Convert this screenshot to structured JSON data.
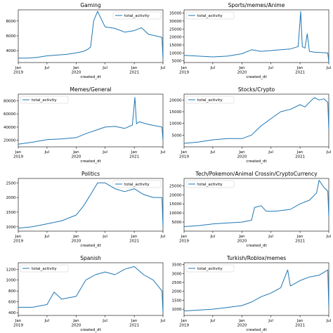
{
  "chart_data": [
    {
      "type": "line",
      "title": "Gaming",
      "xlabel": "created_dt",
      "ylabel": "",
      "legend": "top-right",
      "ylim": [
        2400,
        9500
      ],
      "yticks": [
        4000,
        6000,
        8000
      ],
      "series": [
        {
          "name": "total_activity",
          "color": "#1f77b4",
          "x": [
            "2019-01-01",
            "2019-03-01",
            "2019-05-01",
            "2019-07-01",
            "2019-09-01",
            "2019-11-01",
            "2020-01-01",
            "2020-02-15",
            "2020-03-15",
            "2020-04-01",
            "2020-04-20",
            "2020-05-15",
            "2020-07-01",
            "2020-09-01",
            "2020-11-01",
            "2021-01-01",
            "2021-02-15",
            "2021-04-01",
            "2021-05-15",
            "2021-06-25",
            "2021-07-01"
          ],
          "values": [
            3000,
            3000,
            3100,
            3300,
            3400,
            3500,
            3700,
            3900,
            4200,
            4500,
            8000,
            9300,
            7200,
            7000,
            6500,
            6700,
            7100,
            6200,
            6000,
            5800,
            2900
          ]
        }
      ]
    },
    {
      "type": "line",
      "title": "Sports/memes/Anime",
      "xlabel": "created_dt",
      "ylabel": "",
      "legend": "top-left",
      "ylim": [
        4000,
        37000
      ],
      "yticks": [
        5000,
        10000,
        15000,
        20000,
        25000,
        30000,
        35000
      ],
      "series": [
        {
          "name": "total_activity",
          "color": "#1f77b4",
          "x": [
            "2019-01-01",
            "2019-04-01",
            "2019-07-01",
            "2019-10-01",
            "2020-01-01",
            "2020-03-01",
            "2020-05-01",
            "2020-07-01",
            "2020-09-01",
            "2020-11-01",
            "2020-12-20",
            "2021-01-05",
            "2021-01-15",
            "2021-02-01",
            "2021-02-15",
            "2021-03-01",
            "2021-04-01",
            "2021-06-25",
            "2021-07-01"
          ],
          "values": [
            8500,
            8000,
            7500,
            8000,
            9500,
            12000,
            11000,
            11500,
            12000,
            12500,
            14000,
            36000,
            14000,
            13000,
            22000,
            11000,
            10500,
            10000,
            4500
          ]
        }
      ]
    },
    {
      "type": "line",
      "title": "Memes/General",
      "xlabel": "created_dt",
      "ylabel": "",
      "legend": "top-left",
      "ylim": [
        10000,
        90000
      ],
      "yticks": [
        20000,
        40000,
        60000,
        80000
      ],
      "series": [
        {
          "name": "total_activity",
          "color": "#1f77b4",
          "x": [
            "2019-01-01",
            "2019-04-01",
            "2019-07-01",
            "2019-10-01",
            "2020-01-01",
            "2020-03-01",
            "2020-05-01",
            "2020-07-01",
            "2020-09-01",
            "2020-11-01",
            "2020-12-20",
            "2021-01-05",
            "2021-01-15",
            "2021-02-01",
            "2021-04-01",
            "2021-06-25",
            "2021-07-01"
          ],
          "values": [
            14000,
            17000,
            21000,
            22000,
            24000,
            30000,
            35000,
            40000,
            41000,
            38000,
            43000,
            85000,
            45000,
            48000,
            44000,
            40000,
            20000
          ]
        }
      ]
    },
    {
      "type": "line",
      "title": "Stocks/Crypto",
      "xlabel": "created_dt",
      "ylabel": "",
      "legend": "top-left",
      "ylim": [
        0,
        22500
      ],
      "yticks": [
        5000,
        10000,
        15000,
        20000
      ],
      "series": [
        {
          "name": "total_activity",
          "color": "#1f77b4",
          "x": [
            "2019-01-01",
            "2019-04-01",
            "2019-07-01",
            "2019-10-01",
            "2020-01-01",
            "2020-03-01",
            "2020-05-01",
            "2020-07-01",
            "2020-09-01",
            "2020-11-01",
            "2021-01-01",
            "2021-02-01",
            "2021-03-01",
            "2021-04-01",
            "2021-05-01",
            "2021-06-01",
            "2021-06-25",
            "2021-07-01"
          ],
          "values": [
            1500,
            2000,
            3000,
            3500,
            3500,
            5000,
            9000,
            12000,
            15000,
            16000,
            18000,
            17000,
            19000,
            21000,
            20000,
            20500,
            19000,
            7500
          ]
        }
      ]
    },
    {
      "type": "line",
      "title": "Politics",
      "xlabel": "created_dt",
      "ylabel": "",
      "legend": "top-right",
      "ylim": [
        850,
        2650
      ],
      "yticks": [
        1000,
        1500,
        2000,
        2500
      ],
      "series": [
        {
          "name": "total_activity",
          "color": "#1f77b4",
          "x": [
            "2019-01-01",
            "2019-04-01",
            "2019-07-01",
            "2019-10-01",
            "2020-01-01",
            "2020-02-15",
            "2020-04-01",
            "2020-05-15",
            "2020-07-01",
            "2020-09-01",
            "2020-11-01",
            "2021-01-01",
            "2021-03-01",
            "2021-05-01",
            "2021-06-25",
            "2021-07-01"
          ],
          "values": [
            950,
            1000,
            1100,
            1200,
            1400,
            1700,
            2100,
            2500,
            2500,
            2300,
            2200,
            2300,
            2100,
            2000,
            2000,
            1000
          ]
        }
      ]
    },
    {
      "type": "line",
      "title": "Tech/Pokemon/Animal Crossin/CryptoCurrency",
      "xlabel": "created_dt",
      "ylabel": "",
      "legend": "top-left",
      "ylim": [
        0,
        29000
      ],
      "yticks": [
        5000,
        10000,
        15000,
        20000,
        25000
      ],
      "series": [
        {
          "name": "total_activity",
          "color": "#1f77b4",
          "x": [
            "2019-01-01",
            "2019-04-01",
            "2019-07-01",
            "2019-10-01",
            "2020-01-01",
            "2020-03-01",
            "2020-03-20",
            "2020-05-01",
            "2020-06-01",
            "2020-08-01",
            "2020-11-01",
            "2021-01-01",
            "2021-03-01",
            "2021-04-15",
            "2021-05-01",
            "2021-06-01",
            "2021-06-25",
            "2021-07-01"
          ],
          "values": [
            2500,
            3000,
            4000,
            4500,
            5000,
            6000,
            13000,
            14000,
            11000,
            11000,
            12000,
            15000,
            17000,
            21000,
            28000,
            24000,
            22000,
            8000
          ]
        }
      ]
    },
    {
      "type": "line",
      "title": "Spanish",
      "xlabel": "created_dt",
      "ylabel": "",
      "legend": "top-left",
      "ylim": [
        350,
        1320
      ],
      "yticks": [
        400,
        600,
        800,
        1000,
        1200
      ],
      "series": [
        {
          "name": "total_activity",
          "color": "#1f77b4",
          "x": [
            "2019-01-01",
            "2019-04-01",
            "2019-07-01",
            "2019-08-15",
            "2019-10-01",
            "2020-01-01",
            "2020-03-01",
            "2020-05-01",
            "2020-07-01",
            "2020-09-01",
            "2020-11-01",
            "2021-01-01",
            "2021-03-01",
            "2021-05-01",
            "2021-06-25",
            "2021-07-01"
          ],
          "values": [
            500,
            500,
            550,
            780,
            650,
            700,
            1000,
            1100,
            1150,
            1100,
            1200,
            1250,
            1100,
            1000,
            800,
            400
          ]
        }
      ]
    },
    {
      "type": "line",
      "title": "Turkish/Roblox/memes",
      "xlabel": "created_dt",
      "ylabel": "",
      "legend": "top-left",
      "ylim": [
        650,
        3600
      ],
      "yticks": [
        1000,
        1500,
        2000,
        2500,
        3000,
        3500
      ],
      "series": [
        {
          "name": "total_activity",
          "color": "#1f77b4",
          "x": [
            "2019-01-01",
            "2019-04-01",
            "2019-07-01",
            "2019-10-01",
            "2020-01-01",
            "2020-03-01",
            "2020-05-01",
            "2020-07-01",
            "2020-09-01",
            "2020-10-15",
            "2020-11-01",
            "2021-01-01",
            "2021-03-01",
            "2021-05-01",
            "2021-06-25",
            "2021-07-01"
          ],
          "values": [
            900,
            950,
            1000,
            1100,
            1200,
            1400,
            1700,
            1900,
            2200,
            3200,
            2300,
            2600,
            2800,
            2900,
            3200,
            1100
          ]
        }
      ]
    }
  ],
  "x_ticks": [
    {
      "date": "2019-01-01",
      "label": "Jan",
      "year": "2019"
    },
    {
      "date": "2019-07-01",
      "label": "Jul",
      "year": ""
    },
    {
      "date": "2020-01-01",
      "label": "Jan",
      "year": "2020"
    },
    {
      "date": "2020-07-01",
      "label": "Jul",
      "year": ""
    },
    {
      "date": "2021-01-01",
      "label": "Jan",
      "year": "2021"
    },
    {
      "date": "2021-07-01",
      "label": "Jul",
      "year": ""
    }
  ],
  "x_range": [
    "2019-01-01",
    "2021-07-01"
  ]
}
